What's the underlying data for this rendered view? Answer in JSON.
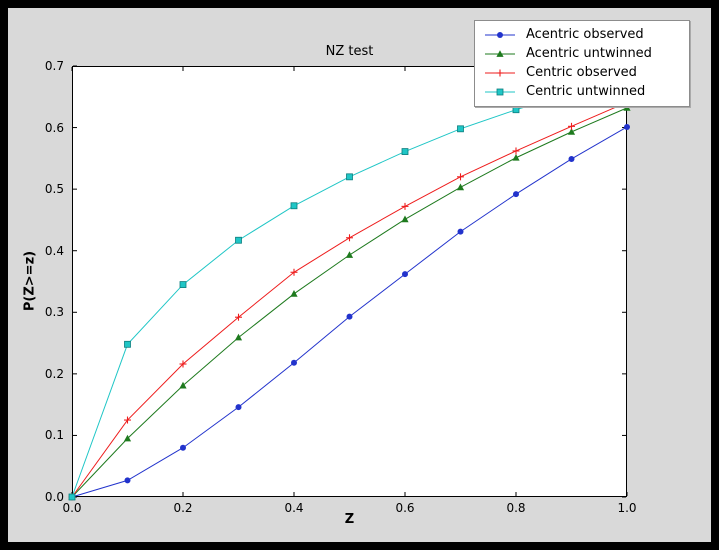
{
  "style": {
    "outer_bg": "#000000",
    "figure_bg": "#d9d9d9",
    "plot_bg": "#ffffff"
  },
  "chart_data": {
    "type": "line",
    "title": "NZ test",
    "xlabel": "Z",
    "ylabel": "P(Z>=z)",
    "xlim": [
      0.0,
      1.0
    ],
    "ylim": [
      0.0,
      0.7
    ],
    "xticks": [
      0.0,
      0.2,
      0.4,
      0.6,
      0.8,
      1.0
    ],
    "yticks": [
      0.0,
      0.1,
      0.2,
      0.3,
      0.4,
      0.5,
      0.6,
      0.7
    ],
    "grid": false,
    "legend_position": "upper right",
    "x": [
      0.0,
      0.1,
      0.2,
      0.3,
      0.4,
      0.5,
      0.6,
      0.7,
      0.8,
      0.9,
      1.0
    ],
    "series": [
      {
        "name": "Acentric observed",
        "color": "#2233cc",
        "marker": "circle",
        "values": [
          0.0,
          0.027,
          0.08,
          0.146,
          0.218,
          0.293,
          0.362,
          0.431,
          0.492,
          0.549,
          0.601
        ]
      },
      {
        "name": "Acentric untwinned",
        "color": "#1e7a1e",
        "marker": "triangle",
        "values": [
          0.0,
          0.095,
          0.181,
          0.259,
          0.33,
          0.393,
          0.451,
          0.503,
          0.551,
          0.593,
          0.632
        ]
      },
      {
        "name": "Centric observed",
        "color": "#ee1c1c",
        "marker": "plus",
        "values": [
          0.0,
          0.125,
          0.216,
          0.292,
          0.365,
          0.421,
          0.472,
          0.52,
          0.562,
          0.602,
          0.641
        ]
      },
      {
        "name": "Centric untwinned",
        "color": "#1fc6c6",
        "marker": "square",
        "values": [
          0.0,
          0.248,
          0.345,
          0.417,
          0.473,
          0.52,
          0.561,
          0.598,
          0.629,
          0.657,
          0.683
        ]
      }
    ]
  }
}
